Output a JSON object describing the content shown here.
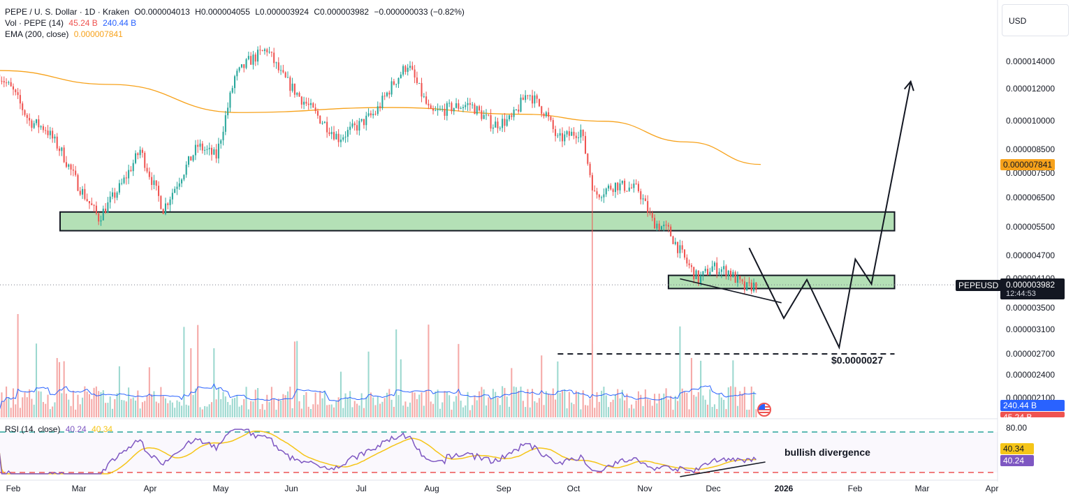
{
  "header": {
    "symbol_line": "PEPE / U. S. Dollar · 1D · Kraken",
    "open": "O0.000004013",
    "high": "H0.000004055",
    "low": "L0.000003924",
    "close": "C0.000003982",
    "change": "−0.000000033 (−0.82%)",
    "vol_label": "Vol · PEPE (14)",
    "vol_value_1": "45.24 B",
    "vol_value_2": "240.44 B",
    "ema_label": "EMA (200, close)",
    "ema_value": "0.000007841",
    "rsi_label": "RSI (14, close)",
    "rsi_value_1": "40.24",
    "rsi_value_2": "40.34"
  },
  "currency_button": "USD",
  "price_axis": {
    "ticks": [
      "0.000014000",
      "0.000012000",
      "0.000010000",
      "0.000008500",
      "0.000007500",
      "0.000006500",
      "0.000005500",
      "0.000004700",
      "0.000004100",
      "0.000003500",
      "0.000003100",
      "0.000002700",
      "0.000002400",
      "0.000002100"
    ]
  },
  "price_tags": {
    "ema": "0.000007841",
    "symbol": "PEPEUSD",
    "last": "0.000003982",
    "countdown": "12:44:53",
    "vol_ma": "240.44 B",
    "vol_last": "45.24 B"
  },
  "rsi_axis": {
    "top": "80.00",
    "ma": "40.34",
    "value": "40.24"
  },
  "time_axis": {
    "labels": [
      "Feb",
      "Mar",
      "Apr",
      "May",
      "Jun",
      "Jul",
      "Aug",
      "Sep",
      "Oct",
      "Nov",
      "Dec",
      "2026",
      "Feb",
      "Mar",
      "Apr"
    ]
  },
  "annotations": {
    "target": "$0.0000027",
    "divergence": "bullish divergence"
  },
  "colors": {
    "up": "#26a69a",
    "down": "#ef5350",
    "ema": "#f7a21b",
    "rsi": "#7e57c2",
    "rsi_ma": "#f5c518",
    "zone": "#b4e0b6",
    "vol_ma": "#2962ff"
  },
  "chart_data": {
    "type": "candlestick",
    "symbol": "PEPE / U. S. Dollar",
    "interval": "1D",
    "exchange": "Kraken",
    "price_points": [
      {
        "date": "2025-01-26",
        "close": 1.3e-05
      },
      {
        "date": "2025-02-01",
        "close": 1.18e-05
      },
      {
        "date": "2025-02-08",
        "close": 1e-05
      },
      {
        "date": "2025-02-15",
        "close": 9.6e-06
      },
      {
        "date": "2025-02-22",
        "close": 8.4e-06
      },
      {
        "date": "2025-03-01",
        "close": 7e-06
      },
      {
        "date": "2025-03-10",
        "close": 5.8e-06
      },
      {
        "date": "2025-03-20",
        "close": 7e-06
      },
      {
        "date": "2025-03-28",
        "close": 8.5e-06
      },
      {
        "date": "2025-04-07",
        "close": 6.1e-06
      },
      {
        "date": "2025-04-15",
        "close": 7.4e-06
      },
      {
        "date": "2025-04-22",
        "close": 8.7e-06
      },
      {
        "date": "2025-04-30",
        "close": 8.2e-06
      },
      {
        "date": "2025-05-08",
        "close": 1.28e-05
      },
      {
        "date": "2025-05-14",
        "close": 1.4e-05
      },
      {
        "date": "2025-05-22",
        "close": 1.5e-05
      },
      {
        "date": "2025-05-28",
        "close": 1.3e-05
      },
      {
        "date": "2025-06-05",
        "close": 1.15e-05
      },
      {
        "date": "2025-06-15",
        "close": 1e-05
      },
      {
        "date": "2025-06-22",
        "close": 9.1e-06
      },
      {
        "date": "2025-07-01",
        "close": 9.8e-06
      },
      {
        "date": "2025-07-08",
        "close": 1.05e-05
      },
      {
        "date": "2025-07-15",
        "close": 1.22e-05
      },
      {
        "date": "2025-07-22",
        "close": 1.38e-05
      },
      {
        "date": "2025-08-01",
        "close": 1.04e-05
      },
      {
        "date": "2025-08-10",
        "close": 1.08e-05
      },
      {
        "date": "2025-08-18",
        "close": 1.1e-05
      },
      {
        "date": "2025-08-28",
        "close": 9.8e-06
      },
      {
        "date": "2025-09-05",
        "close": 1.01e-05
      },
      {
        "date": "2025-09-12",
        "close": 1.18e-05
      },
      {
        "date": "2025-09-20",
        "close": 1.04e-05
      },
      {
        "date": "2025-09-25",
        "close": 9e-06
      },
      {
        "date": "2025-10-05",
        "close": 9.5e-06
      },
      {
        "date": "2025-10-11",
        "close": 6.6e-06
      },
      {
        "date": "2025-10-20",
        "close": 7e-06
      },
      {
        "date": "2025-10-30",
        "close": 6.8e-06
      },
      {
        "date": "2025-11-05",
        "close": 5.7e-06
      },
      {
        "date": "2025-11-12",
        "close": 5.4e-06
      },
      {
        "date": "2025-11-20",
        "close": 4.5e-06
      },
      {
        "date": "2025-11-25",
        "close": 4.1e-06
      },
      {
        "date": "2025-12-01",
        "close": 4.4e-06
      },
      {
        "date": "2025-12-08",
        "close": 4.3e-06
      },
      {
        "date": "2025-12-15",
        "close": 3.9e-06
      },
      {
        "date": "2025-12-20",
        "close": 3.982e-06
      }
    ],
    "ema200": [
      {
        "date": "2025-01-26",
        "value": 1.33e-05
      },
      {
        "date": "2025-03-15",
        "value": 1.23e-05
      },
      {
        "date": "2025-05-10",
        "value": 1.05e-05
      },
      {
        "date": "2025-07-15",
        "value": 1.08e-05
      },
      {
        "date": "2025-09-10",
        "value": 1.04e-05
      },
      {
        "date": "2025-10-15",
        "value": 1e-05
      },
      {
        "date": "2025-11-20",
        "value": 8.9e-06
      },
      {
        "date": "2025-12-22",
        "value": 7.841e-06
      }
    ],
    "support_zones": [
      {
        "from": "2025-01-26",
        "to": "2026-02-18",
        "low": 5.4e-06,
        "high": 6e-06
      },
      {
        "from": "2025-11-12",
        "to": "2026-02-18",
        "low": 3.9e-06,
        "high": 4.2e-06
      }
    ],
    "target_level": 2.7e-06,
    "projection": [
      {
        "date": "2025-12-17",
        "price": 4.9e-06
      },
      {
        "date": "2026-01-01",
        "price": 3.3e-06
      },
      {
        "date": "2026-01-11",
        "price": 4.1e-06
      },
      {
        "date": "2026-01-25",
        "price": 2.8e-06
      },
      {
        "date": "2026-02-01",
        "price": 4.6e-06
      },
      {
        "date": "2026-02-08",
        "price": 4e-06
      },
      {
        "date": "2026-02-25",
        "price": 1.25e-05
      }
    ],
    "rsi": {
      "period": 14,
      "overbought": 80,
      "oversold": 20,
      "last": 40.24,
      "ma_last": 40.34
    },
    "ylim": [
      2e-06,
      1.55e-05
    ],
    "log_scale": true,
    "grid": false
  }
}
